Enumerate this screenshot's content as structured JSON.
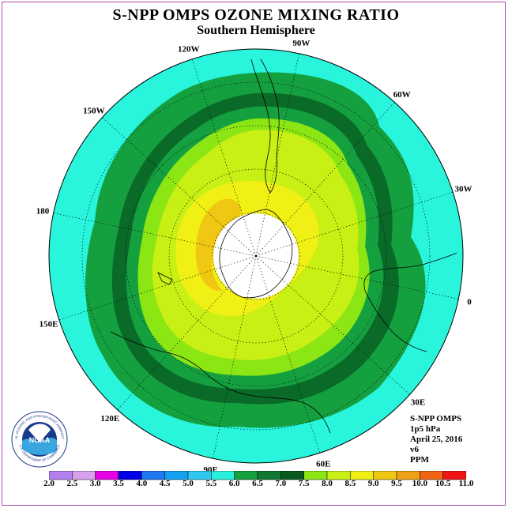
{
  "title": "S-NPP OMPS OZONE MIXING RATIO",
  "subtitle": "Southern Hemisphere",
  "longitude_labels": [
    "90W",
    "60W",
    "30W",
    "0",
    "30E",
    "60E",
    "90E",
    "120E",
    "150E",
    "180",
    "150W",
    "120W"
  ],
  "info": {
    "instrument": "S-NPP OMPS",
    "level": "1p5 hPa",
    "date": "April 25, 2016",
    "version": "v6",
    "units": "PPM"
  },
  "logo": {
    "text": "NOAA",
    "ring_text": "NATIONAL OCEANIC AND ATMOSPHERIC ADMINISTRATION",
    "ring_text_bottom": "U.S. DEPARTMENT OF COMMERCE"
  },
  "colorbar": {
    "labels": [
      "2.0",
      "2.5",
      "3.0",
      "3.5",
      "4.0",
      "4.5",
      "5.0",
      "5.5",
      "6.0",
      "6.5",
      "7.0",
      "7.5",
      "8.0",
      "8.5",
      "9.0",
      "9.5",
      "10.0",
      "10.5",
      "11.0"
    ],
    "colors": [
      "#b27fee",
      "#d9a0ec",
      "#e600e6",
      "#0000e6",
      "#1e78f0",
      "#14a0f0",
      "#2ec8f0",
      "#28f0dc",
      "#15a040",
      "#107830",
      "#0a5a20",
      "#8ce614",
      "#c8f014",
      "#f0f014",
      "#f0c814",
      "#f0a014",
      "#f06414",
      "#f01414",
      "#8c5a3c"
    ]
  },
  "colors": {
    "ocean_fill": "#28f5dc",
    "hole_fill": "#ffffff",
    "frame": "#b44ab4"
  },
  "field": {
    "levels": [
      {
        "ppm_min": 6.0,
        "color": "#15a040"
      },
      {
        "ppm_min": 6.5,
        "color": "#0a6a28"
      },
      {
        "ppm_min": 7.0,
        "color": "#15a040"
      },
      {
        "ppm_min": 7.5,
        "color": "#8ce614"
      },
      {
        "ppm_min": 8.0,
        "color": "#c8f014"
      },
      {
        "ppm_min": 8.5,
        "color": "#f0f014"
      },
      {
        "ppm_min": 9.0,
        "color": "#f0c814"
      }
    ]
  }
}
